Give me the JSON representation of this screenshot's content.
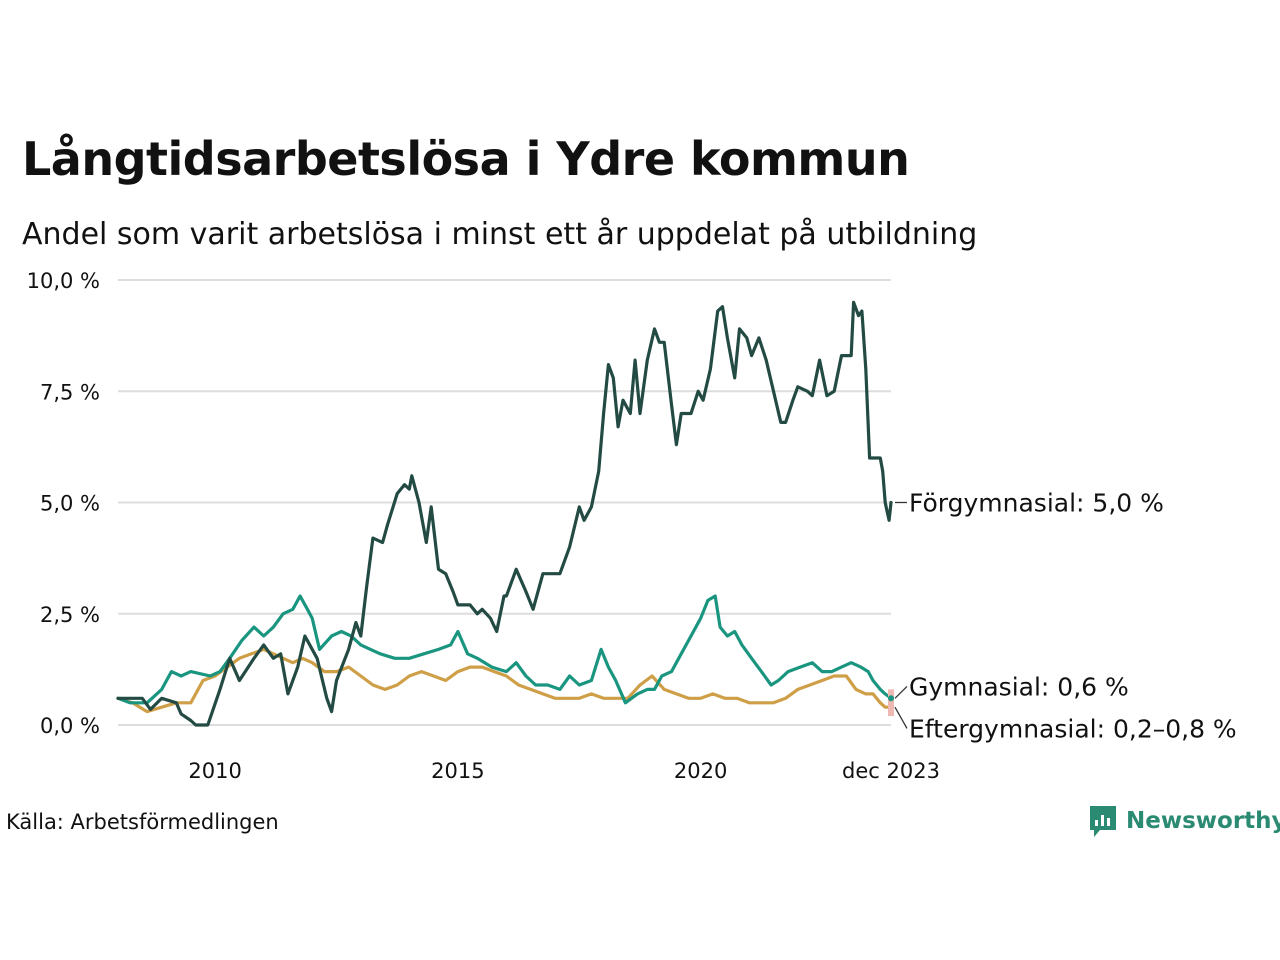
{
  "title": "Långtidsarbetslösa i Ydre kommun",
  "subtitle": "Andel som varit arbetslösa i minst ett år uppdelat på utbildning",
  "source": "Källa: Arbetsförmedlingen",
  "brand": "Newsworthy",
  "colors": {
    "forgymnasial": "#234b44",
    "gymnasial": "#1a9580",
    "eftergymnasial": "#cf9f48",
    "range_marker": "#f0b8b2",
    "grid": "#dddddd",
    "brand": "#2a8a72"
  },
  "chart_data": {
    "type": "line",
    "xlabel": "",
    "ylabel": "",
    "xlim": [
      2008.0,
      2023.92
    ],
    "ylim": [
      0,
      10
    ],
    "y_ticks": [
      {
        "value": 0,
        "label": "0,0 %"
      },
      {
        "value": 2.5,
        "label": "2,5 %"
      },
      {
        "value": 5,
        "label": "5,0 %"
      },
      {
        "value": 7.5,
        "label": "7,5 %"
      },
      {
        "value": 10,
        "label": "10,0 %"
      }
    ],
    "x_ticks": [
      {
        "value": 2010,
        "label": "2010"
      },
      {
        "value": 2015,
        "label": "2015"
      },
      {
        "value": 2020,
        "label": "2020"
      },
      {
        "value": 2023.92,
        "label": "dec 2023"
      }
    ],
    "grid": "horizontal",
    "series": [
      {
        "name": "Förgymnasial",
        "end_label": "Förgymnasial: 5,0 %",
        "points": [
          [
            2008.0,
            0.6
          ],
          [
            2008.5,
            0.6
          ],
          [
            2008.67,
            0.35
          ],
          [
            2008.9,
            0.6
          ],
          [
            2009.2,
            0.5
          ],
          [
            2009.3,
            0.25
          ],
          [
            2009.5,
            0.1
          ],
          [
            2009.6,
            0.0
          ],
          [
            2009.85,
            0.0
          ],
          [
            2010.1,
            0.8
          ],
          [
            2010.3,
            1.5
          ],
          [
            2010.5,
            1.0
          ],
          [
            2010.8,
            1.5
          ],
          [
            2011.0,
            1.8
          ],
          [
            2011.2,
            1.5
          ],
          [
            2011.35,
            1.6
          ],
          [
            2011.5,
            0.7
          ],
          [
            2011.7,
            1.3
          ],
          [
            2011.85,
            2.0
          ],
          [
            2012.1,
            1.5
          ],
          [
            2012.3,
            0.6
          ],
          [
            2012.4,
            0.3
          ],
          [
            2012.5,
            1.0
          ],
          [
            2012.75,
            1.7
          ],
          [
            2012.9,
            2.3
          ],
          [
            2013.0,
            2.0
          ],
          [
            2013.12,
            3.1
          ],
          [
            2013.25,
            4.2
          ],
          [
            2013.45,
            4.1
          ],
          [
            2013.55,
            4.5
          ],
          [
            2013.75,
            5.2
          ],
          [
            2013.9,
            5.4
          ],
          [
            2014.0,
            5.3
          ],
          [
            2014.05,
            5.6
          ],
          [
            2014.2,
            5.0
          ],
          [
            2014.35,
            4.1
          ],
          [
            2014.45,
            4.9
          ],
          [
            2014.6,
            3.5
          ],
          [
            2014.75,
            3.4
          ],
          [
            2014.9,
            3.0
          ],
          [
            2015.0,
            2.7
          ],
          [
            2015.25,
            2.7
          ],
          [
            2015.4,
            2.5
          ],
          [
            2015.5,
            2.6
          ],
          [
            2015.67,
            2.4
          ],
          [
            2015.8,
            2.1
          ],
          [
            2015.95,
            2.9
          ],
          [
            2016.0,
            2.9
          ],
          [
            2016.2,
            3.5
          ],
          [
            2016.4,
            3.0
          ],
          [
            2016.55,
            2.6
          ],
          [
            2016.75,
            3.4
          ],
          [
            2017.1,
            3.4
          ],
          [
            2017.3,
            4.0
          ],
          [
            2017.5,
            4.9
          ],
          [
            2017.6,
            4.6
          ],
          [
            2017.75,
            4.9
          ],
          [
            2017.9,
            5.7
          ],
          [
            2018.0,
            7.0
          ],
          [
            2018.1,
            8.1
          ],
          [
            2018.2,
            7.8
          ],
          [
            2018.3,
            6.7
          ],
          [
            2018.4,
            7.3
          ],
          [
            2018.55,
            7.0
          ],
          [
            2018.65,
            8.2
          ],
          [
            2018.75,
            7.0
          ],
          [
            2018.9,
            8.2
          ],
          [
            2019.05,
            8.9
          ],
          [
            2019.15,
            8.6
          ],
          [
            2019.25,
            8.6
          ],
          [
            2019.4,
            7.2
          ],
          [
            2019.5,
            6.3
          ],
          [
            2019.6,
            7.0
          ],
          [
            2019.8,
            7.0
          ],
          [
            2019.95,
            7.5
          ],
          [
            2020.05,
            7.3
          ],
          [
            2020.2,
            8.0
          ],
          [
            2020.35,
            9.3
          ],
          [
            2020.45,
            9.4
          ],
          [
            2020.55,
            8.7
          ],
          [
            2020.7,
            7.8
          ],
          [
            2020.8,
            8.9
          ],
          [
            2020.95,
            8.7
          ],
          [
            2021.05,
            8.3
          ],
          [
            2021.2,
            8.7
          ],
          [
            2021.35,
            8.2
          ],
          [
            2021.5,
            7.5
          ],
          [
            2021.65,
            6.8
          ],
          [
            2021.75,
            6.8
          ],
          [
            2021.9,
            7.3
          ],
          [
            2022.0,
            7.6
          ],
          [
            2022.2,
            7.5
          ],
          [
            2022.3,
            7.4
          ],
          [
            2022.45,
            8.2
          ],
          [
            2022.6,
            7.4
          ],
          [
            2022.75,
            7.5
          ],
          [
            2022.9,
            8.3
          ],
          [
            2023.0,
            8.3
          ],
          [
            2023.1,
            8.3
          ],
          [
            2023.15,
            9.5
          ],
          [
            2023.25,
            9.2
          ],
          [
            2023.32,
            9.3
          ],
          [
            2023.4,
            8.0
          ],
          [
            2023.48,
            6.0
          ],
          [
            2023.55,
            6.0
          ],
          [
            2023.6,
            6.0
          ],
          [
            2023.7,
            6.0
          ],
          [
            2023.75,
            5.7
          ],
          [
            2023.8,
            5.0
          ],
          [
            2023.84,
            4.8
          ],
          [
            2023.88,
            4.6
          ],
          [
            2023.92,
            5.0
          ]
        ]
      },
      {
        "name": "Gymnasial",
        "end_label": "Gymnasial: 0,6 %",
        "points": [
          [
            2008.0,
            0.6
          ],
          [
            2008.25,
            0.5
          ],
          [
            2008.6,
            0.5
          ],
          [
            2008.9,
            0.8
          ],
          [
            2009.1,
            1.2
          ],
          [
            2009.3,
            1.1
          ],
          [
            2009.5,
            1.2
          ],
          [
            2009.9,
            1.1
          ],
          [
            2010.1,
            1.2
          ],
          [
            2010.3,
            1.5
          ],
          [
            2010.55,
            1.9
          ],
          [
            2010.8,
            2.2
          ],
          [
            2011.0,
            2.0
          ],
          [
            2011.2,
            2.2
          ],
          [
            2011.4,
            2.5
          ],
          [
            2011.6,
            2.6
          ],
          [
            2011.75,
            2.9
          ],
          [
            2011.9,
            2.6
          ],
          [
            2012.0,
            2.4
          ],
          [
            2012.15,
            1.7
          ],
          [
            2012.4,
            2.0
          ],
          [
            2012.6,
            2.1
          ],
          [
            2012.8,
            2.0
          ],
          [
            2013.0,
            1.8
          ],
          [
            2013.2,
            1.7
          ],
          [
            2013.4,
            1.6
          ],
          [
            2013.7,
            1.5
          ],
          [
            2014.0,
            1.5
          ],
          [
            2014.3,
            1.6
          ],
          [
            2014.6,
            1.7
          ],
          [
            2014.85,
            1.8
          ],
          [
            2015.0,
            2.1
          ],
          [
            2015.2,
            1.6
          ],
          [
            2015.4,
            1.5
          ],
          [
            2015.7,
            1.3
          ],
          [
            2016.0,
            1.2
          ],
          [
            2016.2,
            1.4
          ],
          [
            2016.4,
            1.1
          ],
          [
            2016.6,
            0.9
          ],
          [
            2016.85,
            0.9
          ],
          [
            2017.1,
            0.8
          ],
          [
            2017.3,
            1.1
          ],
          [
            2017.5,
            0.9
          ],
          [
            2017.75,
            1.0
          ],
          [
            2017.95,
            1.7
          ],
          [
            2018.1,
            1.3
          ],
          [
            2018.25,
            1.0
          ],
          [
            2018.45,
            0.5
          ],
          [
            2018.7,
            0.7
          ],
          [
            2018.9,
            0.8
          ],
          [
            2019.05,
            0.8
          ],
          [
            2019.2,
            1.1
          ],
          [
            2019.4,
            1.2
          ],
          [
            2019.6,
            1.6
          ],
          [
            2019.8,
            2.0
          ],
          [
            2020.0,
            2.4
          ],
          [
            2020.15,
            2.8
          ],
          [
            2020.3,
            2.9
          ],
          [
            2020.4,
            2.2
          ],
          [
            2020.55,
            2.0
          ],
          [
            2020.7,
            2.1
          ],
          [
            2020.85,
            1.8
          ],
          [
            2021.05,
            1.5
          ],
          [
            2021.25,
            1.2
          ],
          [
            2021.45,
            0.9
          ],
          [
            2021.6,
            1.0
          ],
          [
            2021.8,
            1.2
          ],
          [
            2022.05,
            1.3
          ],
          [
            2022.3,
            1.4
          ],
          [
            2022.5,
            1.2
          ],
          [
            2022.7,
            1.2
          ],
          [
            2022.9,
            1.3
          ],
          [
            2023.1,
            1.4
          ],
          [
            2023.3,
            1.3
          ],
          [
            2023.45,
            1.2
          ],
          [
            2023.55,
            1.0
          ],
          [
            2023.7,
            0.8
          ],
          [
            2023.8,
            0.7
          ],
          [
            2023.92,
            0.6
          ]
        ]
      },
      {
        "name": "Eftergymnasial",
        "end_label": "Eftergymnasial: 0,2–0,8 %",
        "points": [
          [
            2008.0,
            0.6
          ],
          [
            2008.3,
            0.5
          ],
          [
            2008.6,
            0.3
          ],
          [
            2008.9,
            0.4
          ],
          [
            2009.2,
            0.5
          ],
          [
            2009.5,
            0.5
          ],
          [
            2009.75,
            1.0
          ],
          [
            2010.0,
            1.1
          ],
          [
            2010.25,
            1.3
          ],
          [
            2010.5,
            1.5
          ],
          [
            2010.75,
            1.6
          ],
          [
            2011.0,
            1.7
          ],
          [
            2011.2,
            1.6
          ],
          [
            2011.4,
            1.5
          ],
          [
            2011.6,
            1.4
          ],
          [
            2011.8,
            1.5
          ],
          [
            2012.0,
            1.4
          ],
          [
            2012.25,
            1.2
          ],
          [
            2012.5,
            1.2
          ],
          [
            2012.75,
            1.3
          ],
          [
            2013.0,
            1.1
          ],
          [
            2013.25,
            0.9
          ],
          [
            2013.5,
            0.8
          ],
          [
            2013.75,
            0.9
          ],
          [
            2014.0,
            1.1
          ],
          [
            2014.25,
            1.2
          ],
          [
            2014.5,
            1.1
          ],
          [
            2014.75,
            1.0
          ],
          [
            2015.0,
            1.2
          ],
          [
            2015.25,
            1.3
          ],
          [
            2015.5,
            1.3
          ],
          [
            2015.75,
            1.2
          ],
          [
            2016.0,
            1.1
          ],
          [
            2016.25,
            0.9
          ],
          [
            2016.5,
            0.8
          ],
          [
            2016.75,
            0.7
          ],
          [
            2017.0,
            0.6
          ],
          [
            2017.25,
            0.6
          ],
          [
            2017.5,
            0.6
          ],
          [
            2017.75,
            0.7
          ],
          [
            2018.0,
            0.6
          ],
          [
            2018.25,
            0.6
          ],
          [
            2018.5,
            0.6
          ],
          [
            2018.75,
            0.9
          ],
          [
            2019.0,
            1.1
          ],
          [
            2019.25,
            0.8
          ],
          [
            2019.5,
            0.7
          ],
          [
            2019.75,
            0.6
          ],
          [
            2020.0,
            0.6
          ],
          [
            2020.25,
            0.7
          ],
          [
            2020.5,
            0.6
          ],
          [
            2020.75,
            0.6
          ],
          [
            2021.0,
            0.5
          ],
          [
            2021.25,
            0.5
          ],
          [
            2021.5,
            0.5
          ],
          [
            2021.75,
            0.6
          ],
          [
            2022.0,
            0.8
          ],
          [
            2022.25,
            0.9
          ],
          [
            2022.5,
            1.0
          ],
          [
            2022.75,
            1.1
          ],
          [
            2023.0,
            1.1
          ],
          [
            2023.2,
            0.8
          ],
          [
            2023.4,
            0.7
          ],
          [
            2023.55,
            0.7
          ],
          [
            2023.7,
            0.5
          ],
          [
            2023.8,
            0.4
          ],
          [
            2023.92,
            0.4
          ]
        ]
      }
    ]
  }
}
